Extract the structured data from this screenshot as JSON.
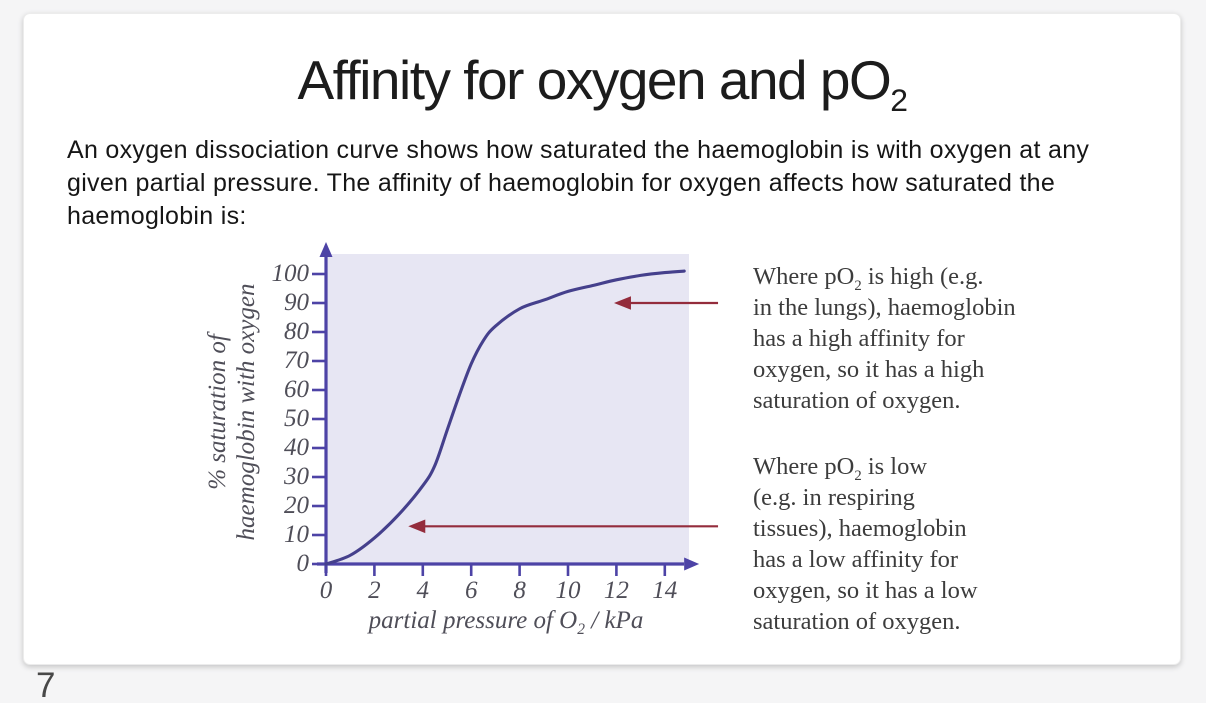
{
  "page": {
    "number": "7"
  },
  "slide": {
    "title": "Affinity for oxygen and pO_{2}",
    "intro_lines": [
      "An oxygen dissociation curve shows how saturated the haemoglobin is with oxygen at any",
      "given partial pressure. The affinity of haemoglobin for oxygen affects how saturated the",
      "haemoglobin is:"
    ],
    "annotation_high": {
      "lines": [
        "Where pO_{2} is high (e.g.",
        "in the lungs), haemoglobin",
        "has a high affinity for",
        "oxygen, so it has a high",
        "saturation of oxygen."
      ]
    },
    "annotation_low": {
      "lines": [
        "Where pO_{2} is low",
        "(e.g. in respiring",
        "tissues), haemoglobin",
        "has a low affinity for",
        "oxygen, so it has a low",
        "saturation of oxygen."
      ]
    }
  },
  "chart_data": {
    "type": "line",
    "title": "",
    "xlabel": "partial pressure of O_{2} / kPa",
    "ylabel_lines": [
      "% saturation of",
      "haemoglobin with oxygen"
    ],
    "x_ticks": [
      0,
      2,
      4,
      6,
      8,
      10,
      12,
      14
    ],
    "y_ticks": [
      0,
      10,
      20,
      30,
      40,
      50,
      60,
      70,
      80,
      90,
      100
    ],
    "xlim": [
      0,
      15
    ],
    "ylim": [
      0,
      107
    ],
    "grid": false,
    "legend": "none",
    "series": [
      {
        "name": "oxygen dissociation curve",
        "points": [
          [
            0,
            0
          ],
          [
            1,
            3
          ],
          [
            2,
            9
          ],
          [
            3,
            17
          ],
          [
            4,
            27
          ],
          [
            4.5,
            34
          ],
          [
            5,
            46
          ],
          [
            5.5,
            58
          ],
          [
            6,
            69
          ],
          [
            6.5,
            77
          ],
          [
            7,
            82
          ],
          [
            8,
            88
          ],
          [
            9,
            91
          ],
          [
            10,
            94
          ],
          [
            11,
            96
          ],
          [
            12,
            98
          ],
          [
            13,
            99.5
          ],
          [
            14,
            100.5
          ],
          [
            14.8,
            101
          ]
        ]
      }
    ],
    "annotations": [
      {
        "label": "high pO2 region",
        "tip_x": 11.9,
        "tip_y": 90,
        "tail_x": 16.2
      },
      {
        "label": "low pO2 region",
        "tip_x": 3.4,
        "tip_y": 13,
        "tail_x": 16.2
      }
    ],
    "colors": {
      "curve": "#45408c",
      "axis": "#4d43a6",
      "plot_bg": "#e7e6f3",
      "arrow": "#942c3c",
      "tick_label": "#4f4e58"
    }
  }
}
